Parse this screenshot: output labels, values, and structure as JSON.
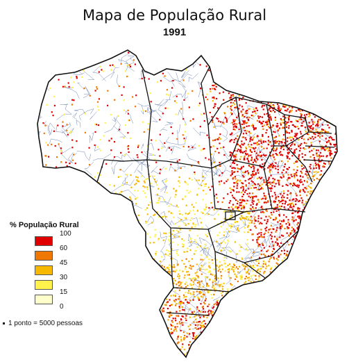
{
  "title": "Mapa de População Rural",
  "year": "1991",
  "legend": {
    "title": "% População Rural",
    "ticks": [
      "100",
      "60",
      "45",
      "30",
      "15",
      "0"
    ],
    "bins": [
      {
        "from": 60,
        "to": 100,
        "color": "#e00000"
      },
      {
        "from": 45,
        "to": 60,
        "color": "#f07800"
      },
      {
        "from": 30,
        "to": 45,
        "color": "#f7b800"
      },
      {
        "from": 15,
        "to": 30,
        "color": "#fff24d"
      },
      {
        "from": 0,
        "to": 15,
        "color": "#ffffcc"
      }
    ]
  },
  "note": "1 ponto =  5000 pessoas",
  "colors": {
    "border_state": "#111111",
    "border_municipal": "#6f86b4",
    "land": "#ffffff"
  }
}
